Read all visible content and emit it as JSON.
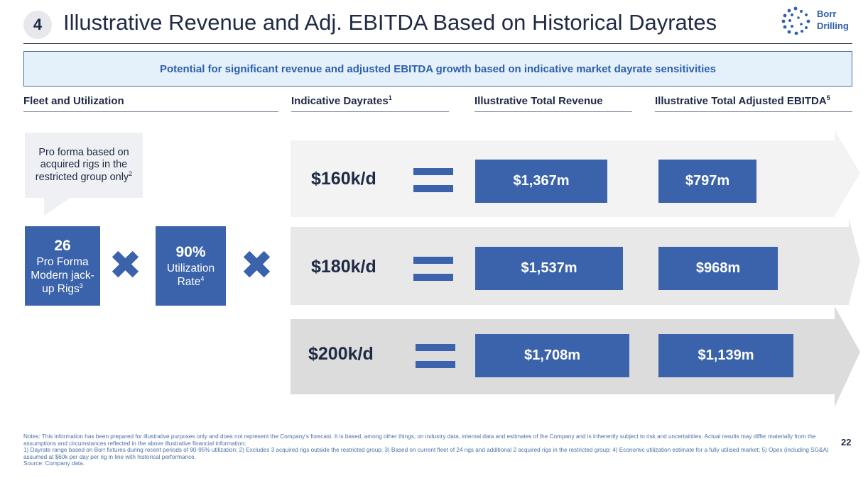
{
  "header": {
    "section_number": "4",
    "title": "Illustrative Revenue and Adj. EBITDA Based on Historical Dayrates",
    "logo_line1": "Borr",
    "logo_line2": "Drilling"
  },
  "banner": "Potential for significant revenue and adjusted EBITDA growth based on indicative market dayrate sensitivities",
  "columns": {
    "fleet": "Fleet and Utilization",
    "dayrates": "Indicative Dayrates",
    "dayrates_sup": "1",
    "revenue": "Illustrative Total Revenue",
    "ebitda": "Illustrative Total Adjusted EBITDA",
    "ebitda_sup": "5"
  },
  "callout": {
    "text": "Pro forma based on acquired rigs in the restricted group only",
    "sup": "2"
  },
  "fleet_box": {
    "value": "26",
    "label": "Pro Forma Modern jack-up Rigs",
    "sup": "3"
  },
  "utilization_box": {
    "value": "90%",
    "label": "Utilization Rate",
    "sup": "4"
  },
  "operator_symbol": "✖",
  "scenarios": [
    {
      "dayrate": "$160k/d",
      "revenue": "$1,367m",
      "ebitda": "$797m"
    },
    {
      "dayrate": "$180k/d",
      "revenue": "$1,537m",
      "ebitda": "$968m"
    },
    {
      "dayrate": "$200k/d",
      "revenue": "$1,708m",
      "ebitda": "$1,139m"
    }
  ],
  "colors": {
    "accent": "#3b63ab",
    "dark": "#1f2a44",
    "arrow1": "#f3f3f3",
    "arrow2": "#e8e8e8",
    "arrow3": "#dcdcdc"
  },
  "footer": {
    "notes_intro": "Notes: This information has been prepared for illustrative purposes only and does not represent the Company's forecast. It is based, among other things, on industry data, internal data and estimates of the Company and is inherently subject to risk and uncertainties. Actual results may differ materially from the assumptions and circumstances reflected in the above illustrative financial information;",
    "notes_list": "1) Dayrate range based on Borr fixtures during recent periods of 90-95% utilization; 2) Excludes 3 acquired rigs outside the restricted group; 3) Based on current fleet of 24 rigs and additional 2 acquired rigs in the restricted group; 4) Economic utilization estimate for a fully utilised market; 5) Opex (including SG&A) assumed at $60k per day per rig in line with historical performance.",
    "source": "Source: Company data.",
    "page_number": "22"
  }
}
